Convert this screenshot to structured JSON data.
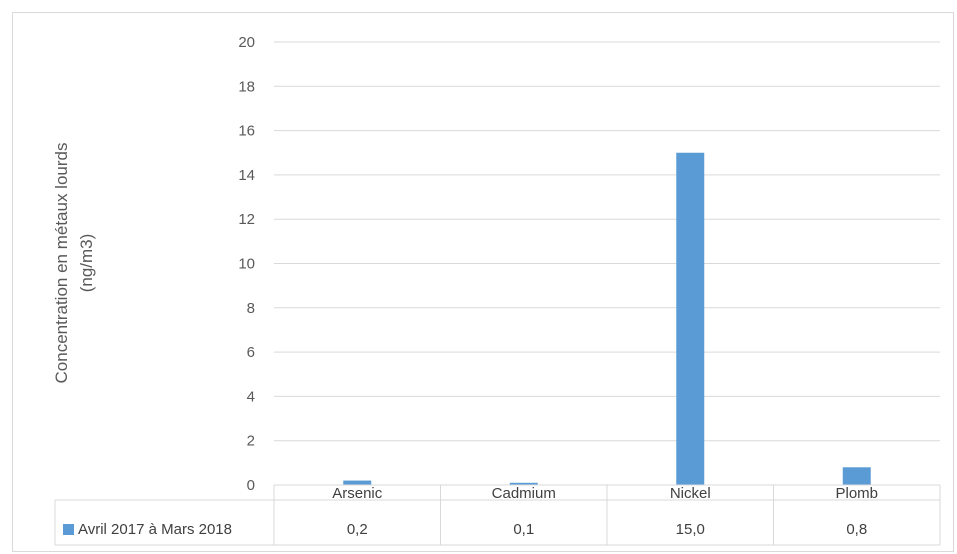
{
  "chart_data": {
    "type": "bar",
    "title": "",
    "xlabel": "",
    "ylabel_lines": [
      "Concentration en métaux lourds",
      "(ng/m3)"
    ],
    "ylim": [
      0,
      20
    ],
    "yticks": [
      "0",
      "2",
      "4",
      "6",
      "8",
      "10",
      "12",
      "14",
      "16",
      "18",
      "20"
    ],
    "categories": [
      "Arsenic",
      "Cadmium",
      "Nickel",
      "Plomb"
    ],
    "series": [
      {
        "name": "Avril 2017 à Mars 2018",
        "values": [
          0.2,
          0.1,
          15.0,
          0.8
        ],
        "value_labels": [
          "0,2",
          "0,1",
          "15,0",
          "0,8"
        ],
        "color": "#5b9bd5"
      }
    ],
    "grid": true,
    "legend": "data-table"
  }
}
